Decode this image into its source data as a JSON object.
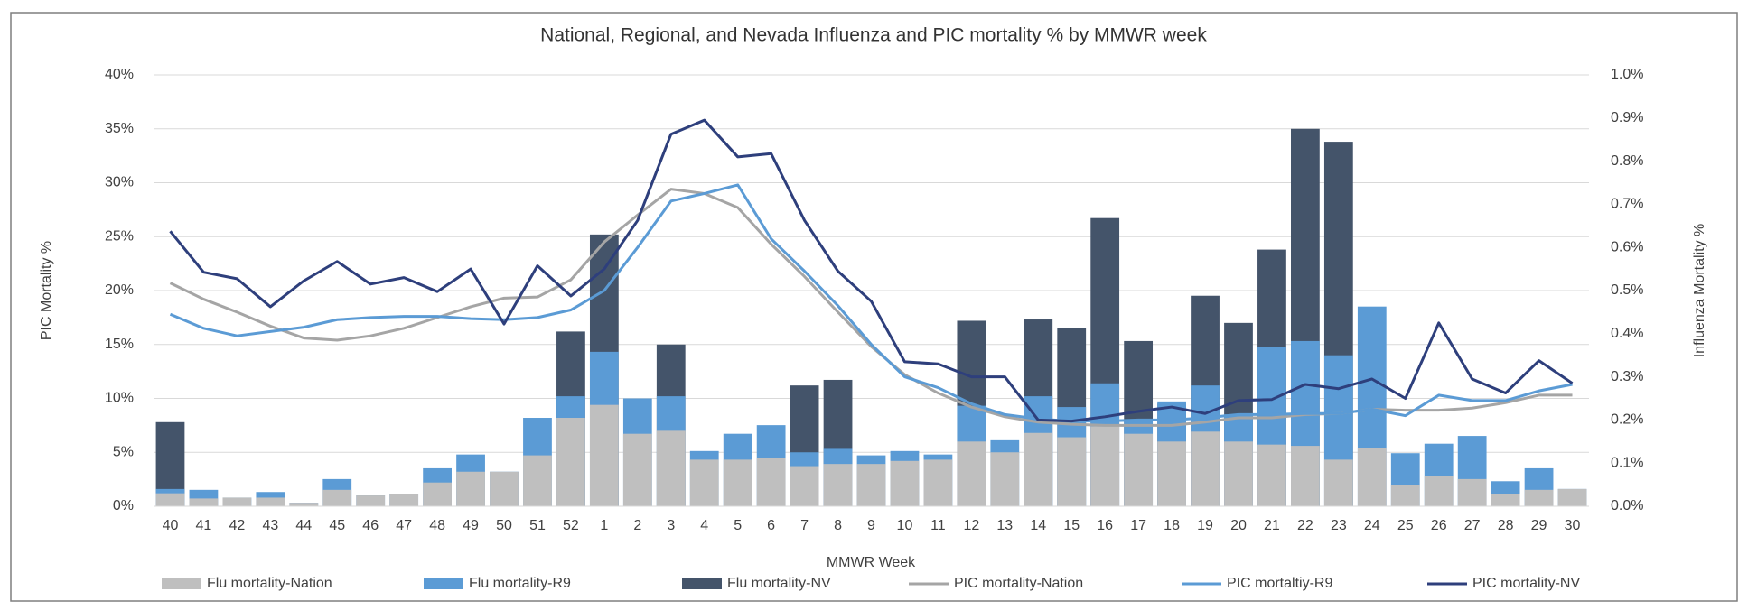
{
  "chart_data": {
    "type": "bar-line-combo",
    "title": "National, Regional, and Nevada Influenza and PIC mortality % by MMWR week",
    "x_label": "MMWR Week",
    "y_label": "PIC Mortality %",
    "y2_label": "Influenza Mortality %",
    "categories": [
      "40",
      "41",
      "42",
      "43",
      "44",
      "45",
      "46",
      "47",
      "48",
      "49",
      "50",
      "51",
      "52",
      "1",
      "2",
      "3",
      "4",
      "5",
      "6",
      "7",
      "8",
      "9",
      "10",
      "11",
      "12",
      "13",
      "14",
      "15",
      "16",
      "17",
      "18",
      "19",
      "20",
      "21",
      "22",
      "23",
      "24",
      "25",
      "26",
      "27",
      "28",
      "29",
      "30"
    ],
    "ylim": [
      0,
      40
    ],
    "yticks": [
      {
        "value": 0,
        "label": "0%"
      },
      {
        "value": 5,
        "label": "5%"
      },
      {
        "value": 10,
        "label": "10%"
      },
      {
        "value": 15,
        "label": "15%"
      },
      {
        "value": 20,
        "label": "20%"
      },
      {
        "value": 25,
        "label": "25%"
      },
      {
        "value": 30,
        "label": "30%"
      },
      {
        "value": 35,
        "label": "35%"
      },
      {
        "value": 40,
        "label": "40%"
      }
    ],
    "y2lim": [
      0,
      1.0
    ],
    "y2ticks": [
      {
        "value": 0,
        "label": "0.0%"
      },
      {
        "value": 0.1,
        "label": "0.1%"
      },
      {
        "value": 0.2,
        "label": "0.2%"
      },
      {
        "value": 0.3,
        "label": "0.3%"
      },
      {
        "value": 0.4,
        "label": "0.4%"
      },
      {
        "value": 0.5,
        "label": "0.5%"
      },
      {
        "value": 0.6,
        "label": "0.6%"
      },
      {
        "value": 0.7,
        "label": "0.7%"
      },
      {
        "value": 0.8,
        "label": "0.8%"
      },
      {
        "value": 0.9,
        "label": "0.9%"
      },
      {
        "value": 1.0,
        "label": "1.0%"
      }
    ],
    "series": [
      {
        "name": "Flu mortality-Nation",
        "type": "bar",
        "axis": "y2",
        "color": "#bfbfbf",
        "values": [
          0.03,
          0.018,
          0.02,
          0.02,
          0.008,
          0.038,
          0.025,
          0.028,
          0.055,
          0.08,
          0.08,
          0.118,
          0.205,
          0.235,
          0.168,
          0.175,
          0.108,
          0.108,
          0.113,
          0.093,
          0.098,
          0.098,
          0.105,
          0.108,
          0.15,
          0.125,
          0.17,
          0.16,
          0.185,
          0.168,
          0.15,
          0.173,
          0.15,
          0.143,
          0.14,
          0.108,
          0.135,
          0.05,
          0.07,
          0.063,
          0.028,
          0.038,
          0.04
        ]
      },
      {
        "name": "Flu mortality-R9",
        "type": "bar",
        "axis": "y2",
        "color": "#5b9bd5",
        "values": [
          0.04,
          0.038,
          0.02,
          0.033,
          0.008,
          0.063,
          0.025,
          0.028,
          0.088,
          0.12,
          0.08,
          0.205,
          0.255,
          0.358,
          0.25,
          0.255,
          0.128,
          0.168,
          0.188,
          0.125,
          0.133,
          0.118,
          0.128,
          0.12,
          0.233,
          0.153,
          0.255,
          0.23,
          0.285,
          0.2,
          0.243,
          0.28,
          0.213,
          0.37,
          0.383,
          0.35,
          0.463,
          0.123,
          0.145,
          0.163,
          0.058,
          0.088,
          0.04
        ]
      },
      {
        "name": "Flu mortality-NV",
        "type": "bar",
        "axis": "y2",
        "color": "#44546a",
        "values": [
          0.195,
          0,
          0,
          0,
          0,
          0,
          0,
          0,
          0,
          0,
          0,
          0,
          0.405,
          0.63,
          0,
          0.375,
          0,
          0,
          0,
          0.28,
          0.293,
          0,
          0,
          0,
          0.43,
          0,
          0.433,
          0.413,
          0.668,
          0.383,
          0.238,
          0.488,
          0.425,
          0.595,
          0.875,
          0.845,
          0,
          0,
          0,
          0,
          0,
          0,
          0
        ]
      },
      {
        "name": "PIC mortality-Nation",
        "type": "line",
        "color": "#a5a5a5",
        "values": [
          20.7,
          19.2,
          18.0,
          16.7,
          15.6,
          15.4,
          15.8,
          16.5,
          17.5,
          18.5,
          19.3,
          19.4,
          21.0,
          24.5,
          27.0,
          29.4,
          29.0,
          27.7,
          24.3,
          21.3,
          18.0,
          14.8,
          12.2,
          10.5,
          9.2,
          8.3,
          7.8,
          7.6,
          7.5,
          7.5,
          7.5,
          7.8,
          8.2,
          8.2,
          8.5,
          8.6,
          9.0,
          8.9,
          8.9,
          9.1,
          9.6,
          10.3,
          10.3
        ]
      },
      {
        "name": "PIC mortaltiy-R9",
        "type": "line",
        "color": "#5b9bd5",
        "values": [
          17.8,
          16.5,
          15.8,
          16.2,
          16.6,
          17.3,
          17.5,
          17.6,
          17.6,
          17.4,
          17.3,
          17.5,
          18.2,
          20.0,
          24.0,
          28.3,
          29.0,
          29.8,
          24.8,
          21.8,
          18.6,
          15.0,
          12.0,
          11.0,
          9.5,
          8.5,
          8.1,
          7.9,
          7.9,
          8.0,
          8.0,
          8.2,
          8.5,
          8.5,
          8.6,
          8.6,
          9.0,
          8.4,
          10.3,
          9.8,
          9.8,
          10.7,
          11.3
        ]
      },
      {
        "name": "PIC mortality-NV",
        "type": "line",
        "color": "#2e3f7c",
        "values": [
          25.5,
          21.7,
          21.1,
          18.5,
          20.9,
          22.7,
          20.6,
          21.2,
          19.9,
          22.0,
          16.9,
          22.3,
          19.5,
          22.0,
          26.5,
          34.5,
          35.8,
          32.4,
          32.7,
          26.5,
          21.8,
          19.0,
          13.4,
          13.2,
          12.0,
          12.0,
          8.0,
          7.9,
          8.3,
          8.8,
          9.2,
          8.6,
          9.8,
          9.9,
          11.3,
          10.9,
          11.8,
          10.0,
          17.0,
          11.8,
          10.5,
          13.5,
          11.4
        ]
      }
    ]
  }
}
